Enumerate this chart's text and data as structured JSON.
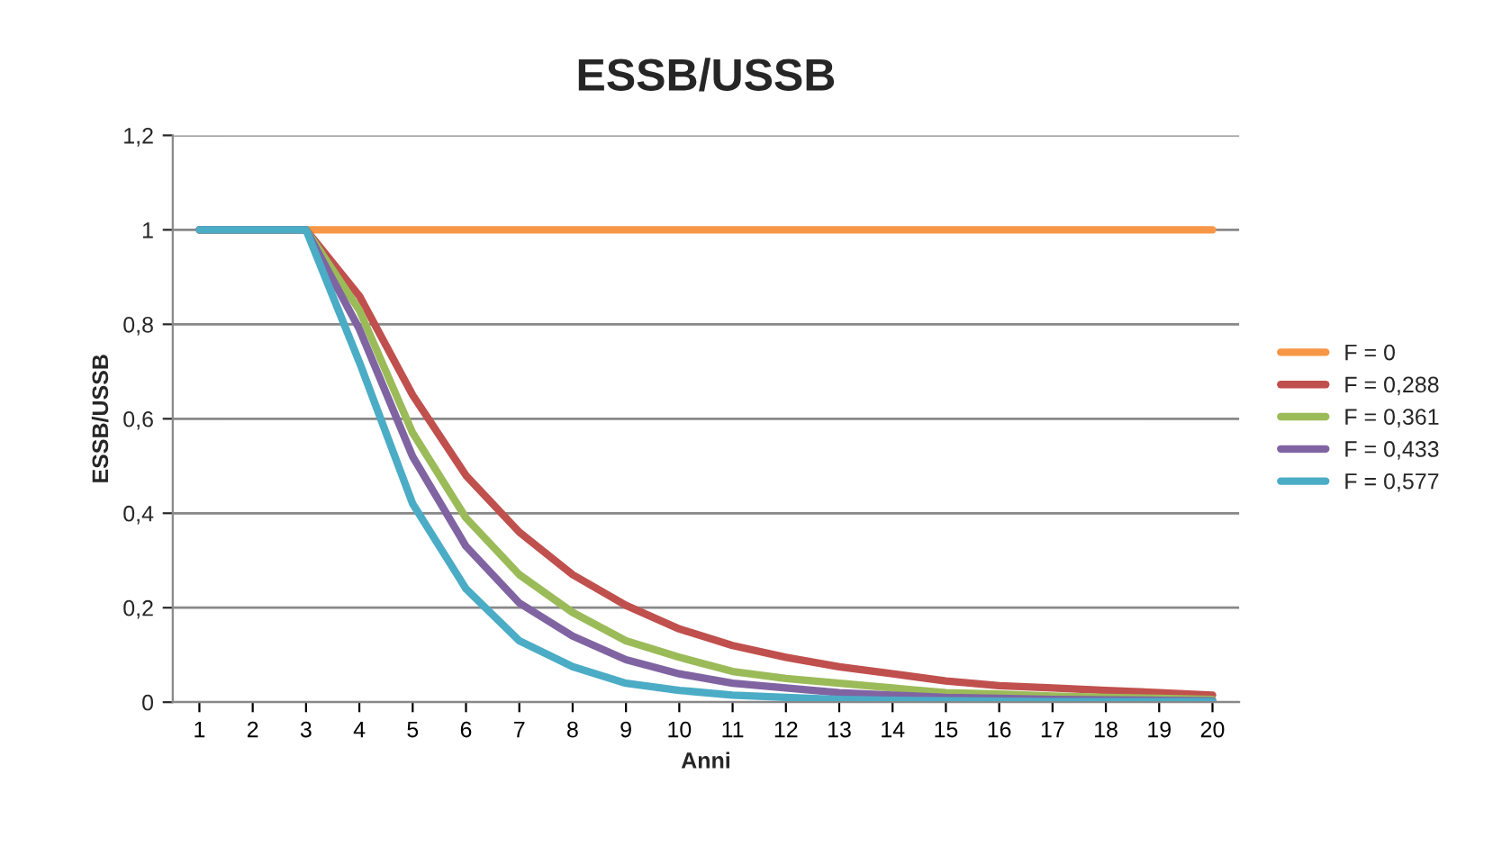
{
  "chart_data": {
    "type": "line",
    "title": "ESSB/USSB",
    "xlabel": "Anni",
    "ylabel": "ESSB/USSB",
    "categories": [
      "1",
      "2",
      "3",
      "4",
      "5",
      "6",
      "7",
      "8",
      "9",
      "10",
      "11",
      "12",
      "13",
      "14",
      "15",
      "16",
      "17",
      "18",
      "19",
      "20"
    ],
    "series": [
      {
        "name": "F = 0",
        "color": "#f79646",
        "values": [
          1,
          1,
          1,
          1,
          1,
          1,
          1,
          1,
          1,
          1,
          1,
          1,
          1,
          1,
          1,
          1,
          1,
          1,
          1,
          1
        ]
      },
      {
        "name": "F = 0,288",
        "color": "#c0504d",
        "values": [
          1,
          1,
          1,
          0.86,
          0.65,
          0.48,
          0.36,
          0.27,
          0.205,
          0.155,
          0.12,
          0.095,
          0.075,
          0.06,
          0.045,
          0.035,
          0.03,
          0.025,
          0.02,
          0.015
        ]
      },
      {
        "name": "F = 0,361",
        "color": "#9bbb59",
        "values": [
          1,
          1,
          1,
          0.83,
          0.57,
          0.39,
          0.27,
          0.19,
          0.13,
          0.095,
          0.065,
          0.05,
          0.04,
          0.03,
          0.02,
          0.017,
          0.013,
          0.01,
          0.008,
          0.006
        ]
      },
      {
        "name": "F = 0,433",
        "color": "#8064a2",
        "values": [
          1,
          1,
          1,
          0.79,
          0.52,
          0.33,
          0.21,
          0.14,
          0.09,
          0.06,
          0.04,
          0.03,
          0.02,
          0.015,
          0.01,
          0.008,
          0.006,
          0.005,
          0.004,
          0.003
        ]
      },
      {
        "name": "F = 0,577",
        "color": "#4bacc6",
        "values": [
          1,
          1,
          1,
          0.72,
          0.42,
          0.24,
          0.13,
          0.075,
          0.04,
          0.025,
          0.015,
          0.01,
          0.006,
          0.004,
          0.003,
          0.002,
          0.001,
          0.001,
          0.001,
          0.001
        ]
      }
    ],
    "ylim": [
      0,
      1.2
    ],
    "yticks": [
      0,
      {
        "value": 0.2,
        "label": "0,2"
      },
      {
        "value": 0.4,
        "label": "0,4"
      },
      {
        "value": 0.6,
        "label": "0,6"
      },
      {
        "value": 0.8,
        "label": "0,8"
      },
      1,
      {
        "value": 1.2,
        "label": "1,2"
      }
    ],
    "grid": "y",
    "legend": "right",
    "marker": "none",
    "line_style": "solid"
  }
}
